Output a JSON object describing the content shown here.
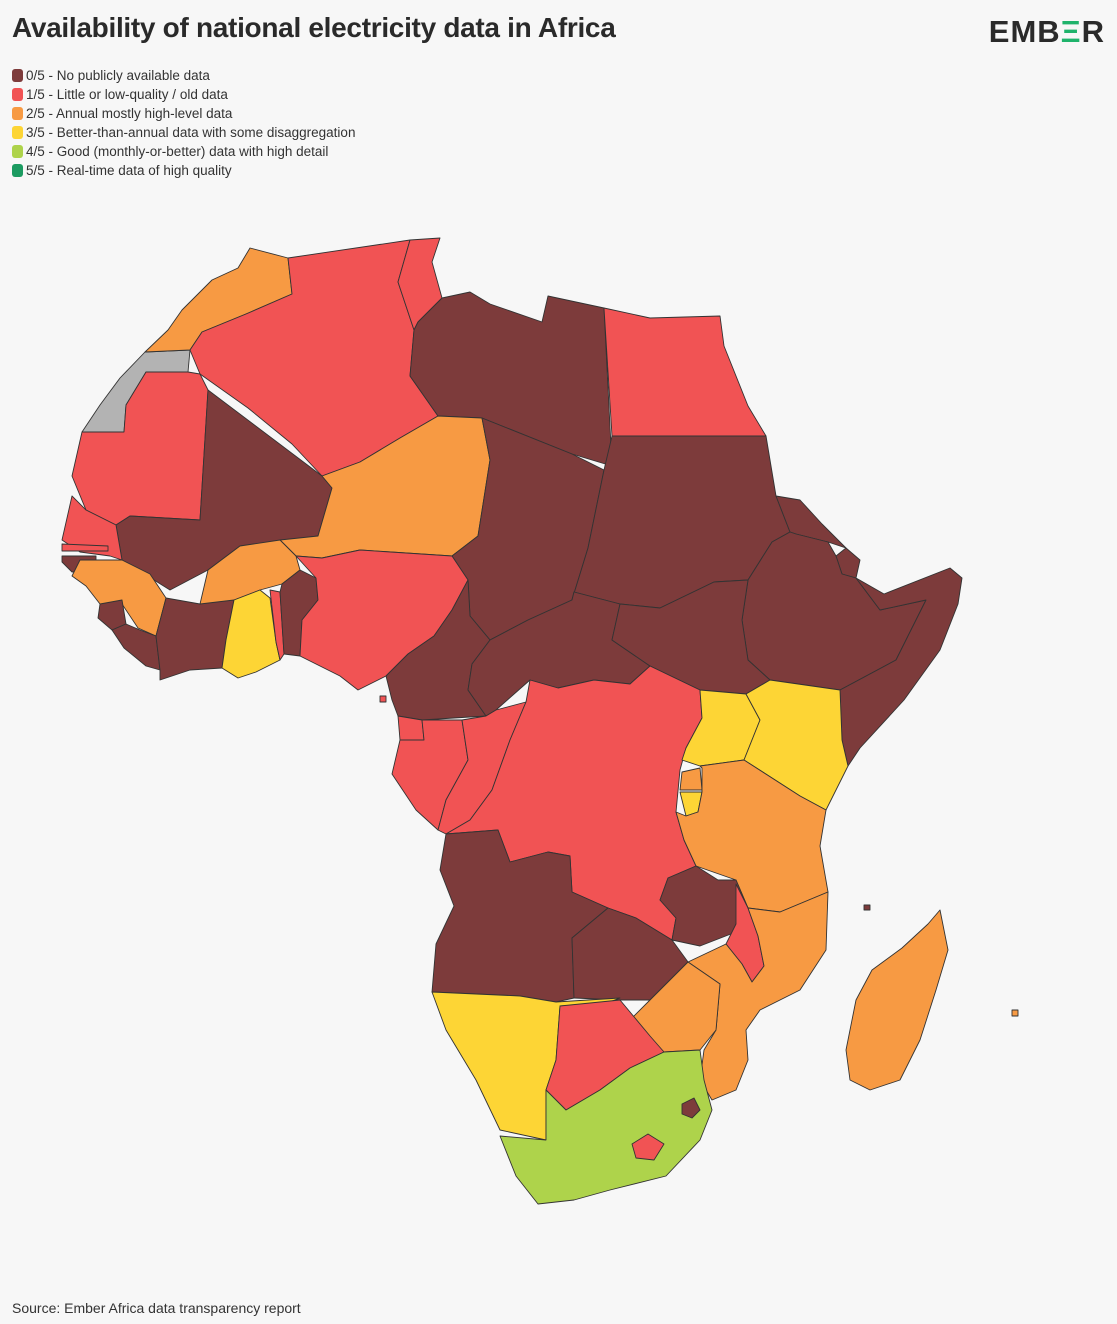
{
  "header": {
    "title": "Availability of national electricity data in Africa",
    "logo": {
      "pre": "EMB",
      "accent": "Ξ",
      "post": "R"
    }
  },
  "legend": [
    {
      "label": "0/5 - No publicly available data",
      "color": "#7d3b3b"
    },
    {
      "label": "1/5 - Little or low-quality / old data",
      "color": "#f15354"
    },
    {
      "label": "2/5 - Annual mostly high-level data",
      "color": "#f79a43"
    },
    {
      "label": "3/5 - Better-than-annual data with some disaggregation",
      "color": "#fdd535"
    },
    {
      "label": "4/5 - Good (monthly-or-better) data with high detail",
      "color": "#aed34b"
    },
    {
      "label": "5/5 - Real-time data of high quality",
      "color": "#1c9b61"
    }
  ],
  "no_data_color": "#b3b3b3",
  "map_data": {
    "Western Sahara": null,
    "Morocco": 2,
    "Algeria": 1,
    "Tunisia": 1,
    "Libya": 0,
    "Egypt": 1,
    "Mauritania": 1,
    "Mali": 0,
    "Niger": 2,
    "Chad": 0,
    "Sudan": 0,
    "Eritrea": 0,
    "Djibouti": 0,
    "Ethiopia": 0,
    "Somalia": 0,
    "Senegal": 1,
    "Gambia": 1,
    "Guinea-Bissau": 0,
    "Guinea": 2,
    "Sierra Leone": 0,
    "Liberia": 0,
    "Cote d'Ivoire": 0,
    "Burkina Faso": 2,
    "Ghana": 3,
    "Togo": 1,
    "Benin": 0,
    "Nigeria": 1,
    "Cameroon": 0,
    "Central African Republic": 0,
    "South Sudan": 0,
    "Equatorial Guinea": 1,
    "Gabon": 1,
    "Congo": 1,
    "DR Congo": 1,
    "Uganda": 3,
    "Kenya": 3,
    "Rwanda": 2,
    "Burundi": 3,
    "Tanzania": 2,
    "Angola": 0,
    "Zambia": 0,
    "Malawi": 1,
    "Mozambique": 2,
    "Zimbabwe": 2,
    "Namibia": 3,
    "Botswana": 1,
    "South Africa": 4,
    "Lesotho": 1,
    "Eswatini": 0,
    "Madagascar": 2
  },
  "footer": {
    "source": "Source: Ember Africa data transparency report"
  }
}
